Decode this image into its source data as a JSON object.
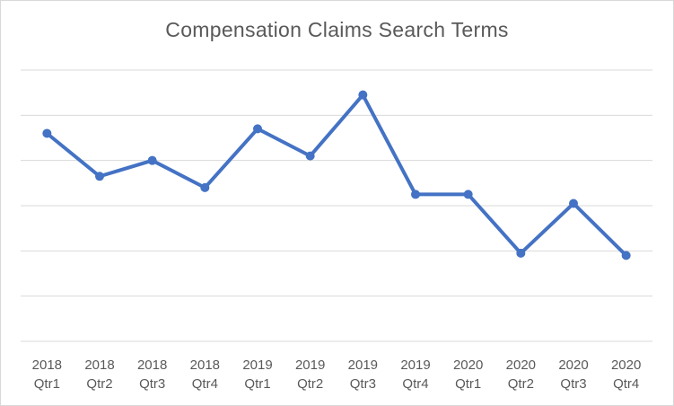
{
  "chart_data": {
    "type": "line",
    "title": "Compensation Claims Search Terms",
    "xlabel": "",
    "ylabel": "",
    "categories": [
      [
        "2018",
        "Qtr1"
      ],
      [
        "2018",
        "Qtr2"
      ],
      [
        "2018",
        "Qtr3"
      ],
      [
        "2018",
        "Qtr4"
      ],
      [
        "2019",
        "Qtr1"
      ],
      [
        "2019",
        "Qtr2"
      ],
      [
        "2019",
        "Qtr3"
      ],
      [
        "2019",
        "Qtr4"
      ],
      [
        "2020",
        "Qtr1"
      ],
      [
        "2020",
        "Qtr2"
      ],
      [
        "2020",
        "Qtr3"
      ],
      [
        "2020",
        "Qtr4"
      ]
    ],
    "series": [
      {
        "values": [
          4.6,
          3.65,
          4.0,
          3.4,
          4.7,
          4.1,
          5.45,
          3.25,
          3.25,
          1.95,
          3.05,
          1.9
        ],
        "color": "#4472c4"
      }
    ],
    "ylim": [
      0,
      6
    ],
    "y_gridlines": [
      0,
      1,
      2,
      3,
      4,
      5,
      6
    ],
    "y_tick_labels_shown": false,
    "grid": true,
    "legend": "none",
    "gridline_color": "#d9d9d9",
    "text_color": "#595959"
  }
}
